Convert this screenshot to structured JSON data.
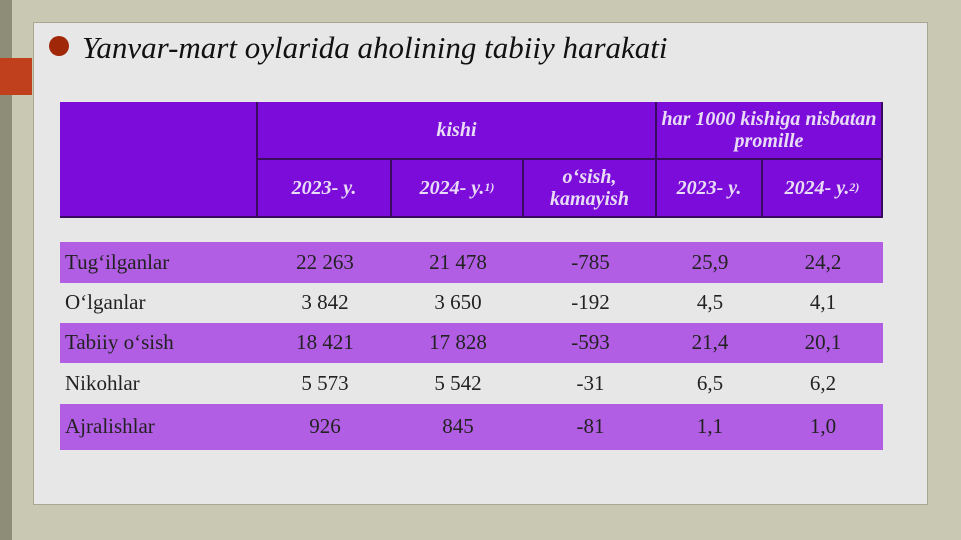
{
  "title": "Yanvar-mart oylarida aholining tabiiy harakati",
  "table": {
    "group_headers": [
      "kishi",
      "har 1000 kishiga nisbatan promille"
    ],
    "sub_headers": [
      {
        "text": "2023- y."
      },
      {
        "text": "2024- y.",
        "note": "1)"
      },
      {
        "text": "o‘sish, kamayish"
      },
      {
        "text": "2023- y."
      },
      {
        "text": "2024- y.",
        "note": "2)"
      }
    ],
    "rows": [
      [
        "Tug‘ilganlar",
        "22 263",
        "21 478",
        "-785",
        "25,9",
        "24,2"
      ],
      [
        "O‘lganlar",
        "3 842",
        "3 650",
        "-192",
        "4,5",
        "4,1"
      ],
      [
        "Tabiiy o‘sish",
        "18 421",
        "17 828",
        "-593",
        "21,4",
        "20,1"
      ],
      [
        "Nikohlar",
        "5 573",
        "5 542",
        "-31",
        "6,5",
        "6,2"
      ],
      [
        "Ajralishlar",
        "926",
        "845",
        "-81",
        "1,1",
        "1,0"
      ]
    ]
  }
}
